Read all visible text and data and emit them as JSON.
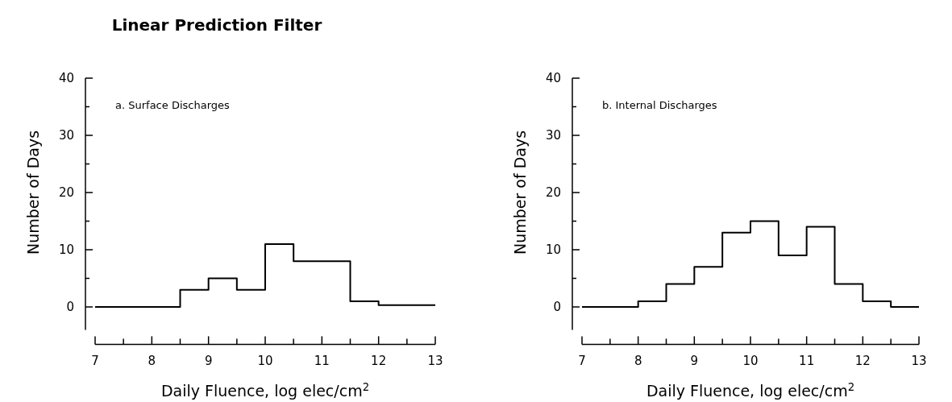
{
  "chart_data": [
    {
      "type": "histogram",
      "title": "Linear Prediction Filter",
      "xlabel": "Daily Fluence, log elec/cm$^{2}$",
      "ylabel": "Number of Days",
      "annotations": [
        "a. Surface Discharges"
      ],
      "bins": [
        7,
        7.5,
        8,
        8.5,
        9,
        9.5,
        10,
        10.5,
        11,
        11.5,
        12,
        12.5,
        13
      ],
      "values": [
        0,
        0,
        0,
        3,
        5,
        3,
        11,
        8,
        8,
        1,
        0.3,
        0.3
      ],
      "color": "#000000",
      "xlim": [
        7,
        13
      ],
      "ylim": [
        -4,
        40
      ],
      "xticks": [
        7,
        {
          "value": 7.5,
          "label": null
        },
        8,
        {
          "value": 8.5,
          "label": null
        },
        9,
        {
          "value": 9.5,
          "label": null
        },
        10,
        {
          "value": 10.5,
          "label": null
        },
        11,
        {
          "value": 11.5,
          "label": null
        },
        12,
        {
          "value": 12.5,
          "label": null
        },
        13
      ],
      "yticks": [
        0,
        {
          "value": 5,
          "label": null
        },
        10,
        {
          "value": 15,
          "label": null
        },
        20,
        {
          "value": 25,
          "label": null
        },
        30,
        {
          "value": 35,
          "label": null
        },
        40
      ],
      "grid": false
    },
    {
      "type": "histogram",
      "xlabel": "Daily Fluence, log elec/cm$^{2}$",
      "ylabel": "Number of Days",
      "annotations": [
        "b. Internal Discharges"
      ],
      "bins": [
        7,
        7.5,
        8,
        8.5,
        9,
        9.5,
        10,
        10.5,
        11,
        11.5,
        12,
        12.5,
        13
      ],
      "values": [
        0,
        0,
        1,
        4,
        7,
        13,
        15,
        9,
        14,
        4,
        1,
        0
      ],
      "color": "#000000",
      "xlim": [
        7,
        13
      ],
      "ylim": [
        -4,
        40
      ],
      "xticks": [
        7,
        {
          "value": 7.5,
          "label": null
        },
        8,
        {
          "value": 8.5,
          "label": null
        },
        9,
        {
          "value": 9.5,
          "label": null
        },
        10,
        {
          "value": 10.5,
          "label": null
        },
        11,
        {
          "value": 11.5,
          "label": null
        },
        12,
        {
          "value": 12.5,
          "label": null
        },
        13
      ],
      "yticks": [
        0,
        {
          "value": 5,
          "label": null
        },
        10,
        {
          "value": 15,
          "label": null
        },
        20,
        {
          "value": 25,
          "label": null
        },
        30,
        {
          "value": 35,
          "label": null
        },
        40
      ],
      "grid": false
    }
  ]
}
